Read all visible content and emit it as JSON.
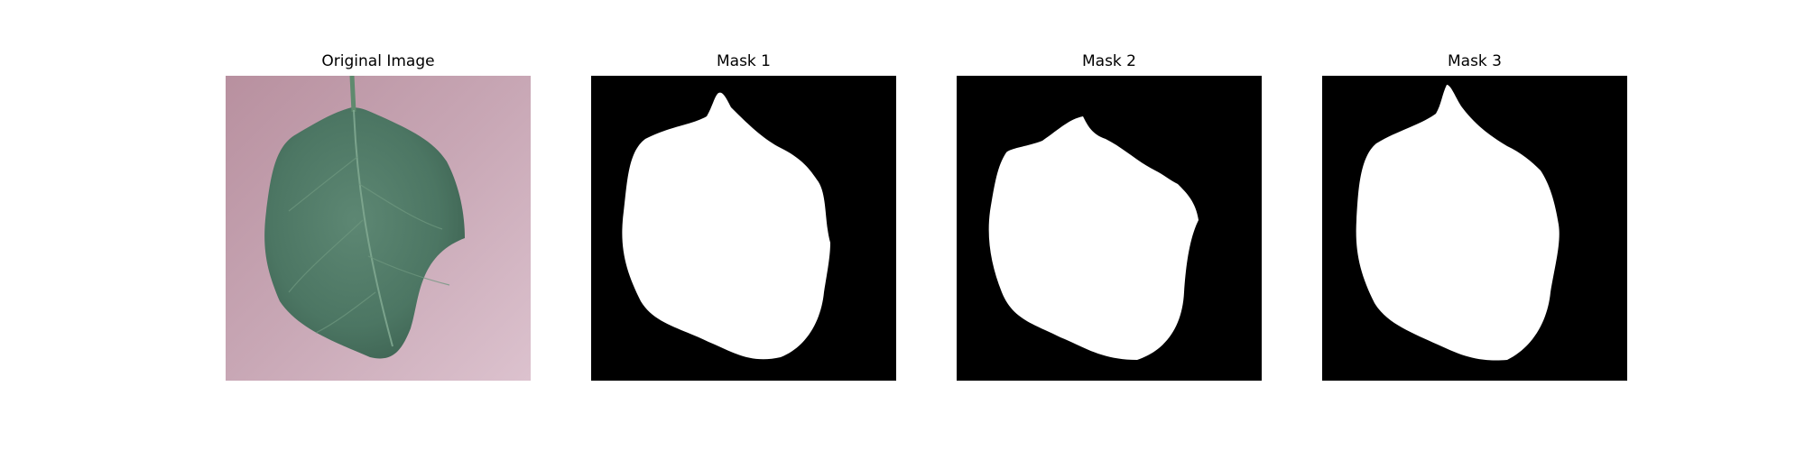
{
  "figure": {
    "panels": [
      {
        "title": "Original Image"
      },
      {
        "title": "Mask 1"
      },
      {
        "title": "Mask 2"
      },
      {
        "title": "Mask 3"
      }
    ]
  },
  "colors": {
    "background": "#ffffff",
    "mask_bg": "#000000",
    "mask_fg": "#ffffff",
    "leaf": "#4f7a66",
    "surface": "#c9a7b6"
  }
}
